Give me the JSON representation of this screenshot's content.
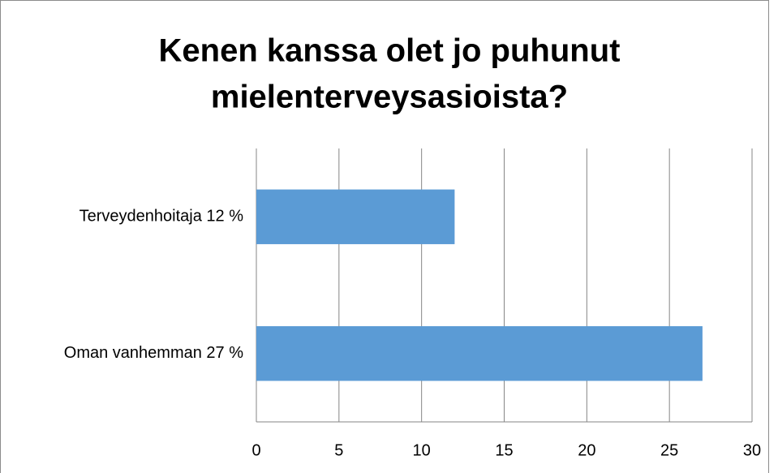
{
  "chart_data": {
    "type": "bar",
    "orientation": "horizontal",
    "title": [
      "Kenen kanssa olet jo puhunut",
      "mielenterveysasioista?"
    ],
    "categories": [
      "Terveydenhoitaja 12 %",
      "Oman vanhemman 27 %"
    ],
    "values": [
      12,
      27
    ],
    "color": "#5b9bd5",
    "xlim": [
      0,
      30
    ],
    "xticks": [
      0,
      5,
      10,
      15,
      20,
      25,
      30
    ],
    "grid": true
  }
}
